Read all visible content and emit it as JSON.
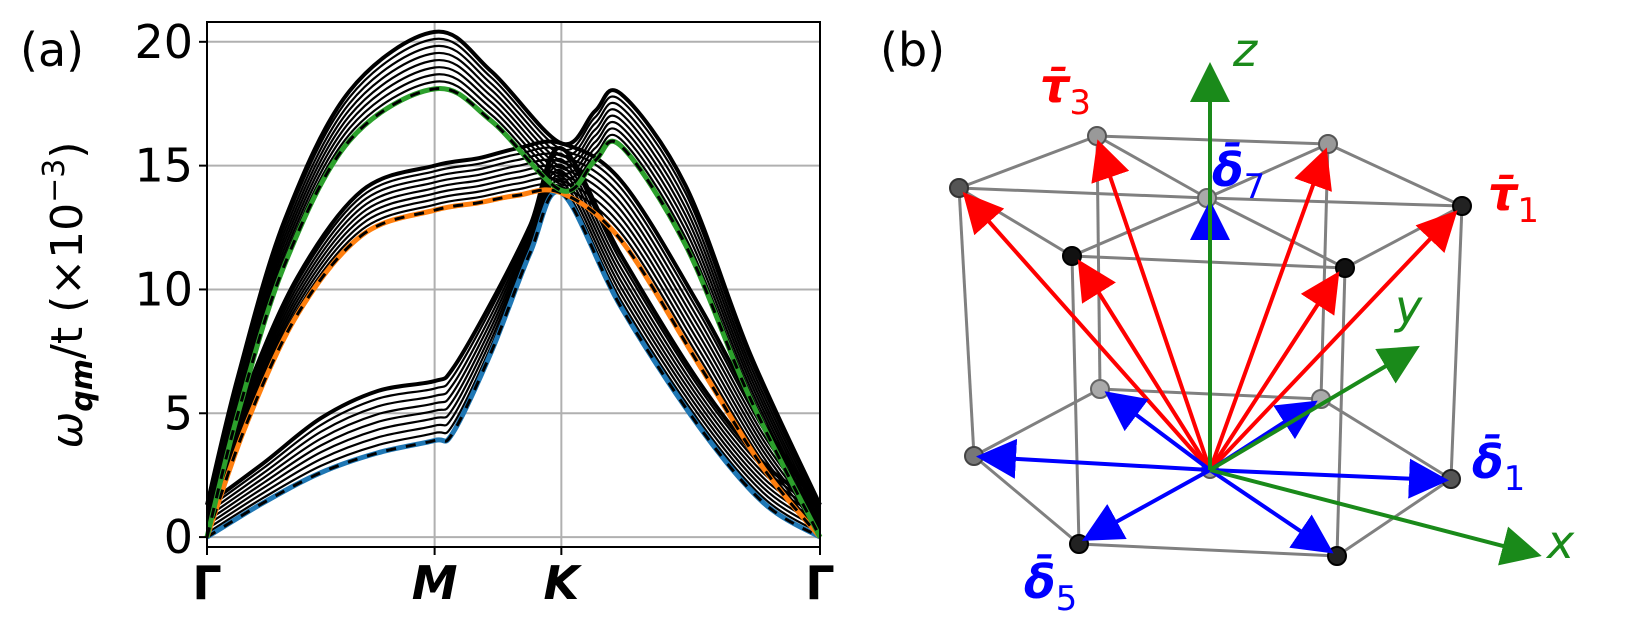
{
  "panel_a": {
    "label": "(a)"
  },
  "panel_b": {
    "label": "(b)"
  },
  "chart_data": [
    {
      "type": "line",
      "title": "",
      "ylabel": "ω_qm/t (×10^−3)",
      "ylabel_parts": {
        "omega": "ω",
        "sub": "qm",
        "slash_t": "/t (×10",
        "exp": "−3",
        "close": ")"
      },
      "xlabel": "",
      "x_ticks": [
        {
          "label": "Γ",
          "pos": 0.0
        },
        {
          "label": "M",
          "pos": 0.88
        },
        {
          "label": "K",
          "pos": 1.37
        },
        {
          "label": "Γ",
          "pos": 2.37
        }
      ],
      "xlim": [
        0,
        2.37
      ],
      "ylim": [
        -0.4,
        20.8
      ],
      "y_ticks": [
        0,
        5,
        10,
        15,
        20
      ],
      "grid": true,
      "bands": {
        "count_per_group": 9,
        "lowest": {
          "color": "#1f77b4",
          "x": [
            0,
            0.22,
            0.44,
            0.66,
            0.88,
            0.95,
            1.1,
            1.25,
            1.37,
            1.6,
            1.9,
            2.15,
            2.37
          ],
          "y": [
            0,
            1.4,
            2.6,
            3.4,
            3.9,
            4.2,
            7.5,
            11.5,
            13.9,
            9.3,
            4.5,
            1.4,
            0
          ]
        },
        "lowest_top": {
          "x": [
            0,
            0.22,
            0.44,
            0.66,
            0.88,
            0.95,
            1.1,
            1.25,
            1.37,
            1.6,
            1.9,
            2.15,
            2.37
          ],
          "y": [
            1.3,
            3.0,
            4.8,
            5.9,
            6.3,
            6.8,
            9.5,
            12.6,
            15.7,
            11.4,
            6.3,
            3.0,
            1.3
          ]
        },
        "middle": {
          "color": "#ff7f0e",
          "x": [
            0,
            0.15,
            0.35,
            0.6,
            0.88,
            1.05,
            1.2,
            1.37,
            1.6,
            1.9,
            2.15,
            2.37
          ],
          "y": [
            0,
            4.5,
            9.0,
            12.2,
            13.2,
            13.5,
            13.8,
            13.9,
            12.0,
            7.0,
            2.8,
            0
          ]
        },
        "middle_top": {
          "x": [
            0,
            0.15,
            0.35,
            0.6,
            0.88,
            1.05,
            1.2,
            1.37,
            1.6,
            1.9,
            2.15,
            2.37
          ],
          "y": [
            1.3,
            5.8,
            10.5,
            14.0,
            15.0,
            15.3,
            15.7,
            15.9,
            14.4,
            9.4,
            4.6,
            1.3
          ]
        },
        "top": {
          "color": "#2ca02c",
          "x": [
            0,
            0.12,
            0.3,
            0.55,
            0.88,
            1.1,
            1.37,
            1.5,
            1.6,
            1.85,
            2.1,
            2.37
          ],
          "y": [
            0,
            5.0,
            11.0,
            16.0,
            18.1,
            16.8,
            14.0,
            15.2,
            15.8,
            11.8,
            5.6,
            0
          ]
        },
        "top_top": {
          "x": [
            0,
            0.12,
            0.3,
            0.55,
            0.88,
            1.1,
            1.37,
            1.5,
            1.6,
            1.85,
            2.1,
            2.37
          ],
          "y": [
            1.3,
            6.5,
            12.8,
            18.0,
            20.4,
            18.8,
            15.9,
            17.2,
            17.9,
            14.2,
            7.4,
            1.3
          ]
        }
      }
    },
    {
      "type": "diagram",
      "axes": [
        {
          "label": "x",
          "color": "#1a8a1a"
        },
        {
          "label": "y",
          "color": "#1a8a1a"
        },
        {
          "label": "z",
          "color": "#1a8a1a"
        }
      ],
      "vector_labels": [
        {
          "sym": "τ̄",
          "sub": "3",
          "color": "#ff0000"
        },
        {
          "sym": "τ̄",
          "sub": "1",
          "color": "#ff0000"
        },
        {
          "sym": "δ̄",
          "sub": "7",
          "color": "#0000ff"
        },
        {
          "sym": "δ̄",
          "sub": "1",
          "color": "#0000ff"
        },
        {
          "sym": "δ̄",
          "sub": "5",
          "color": "#0000ff"
        }
      ],
      "colors": {
        "tau": "#ff0000",
        "delta": "#0000ff",
        "axis": "#1a8a1a",
        "frame": "#808080"
      }
    }
  ]
}
